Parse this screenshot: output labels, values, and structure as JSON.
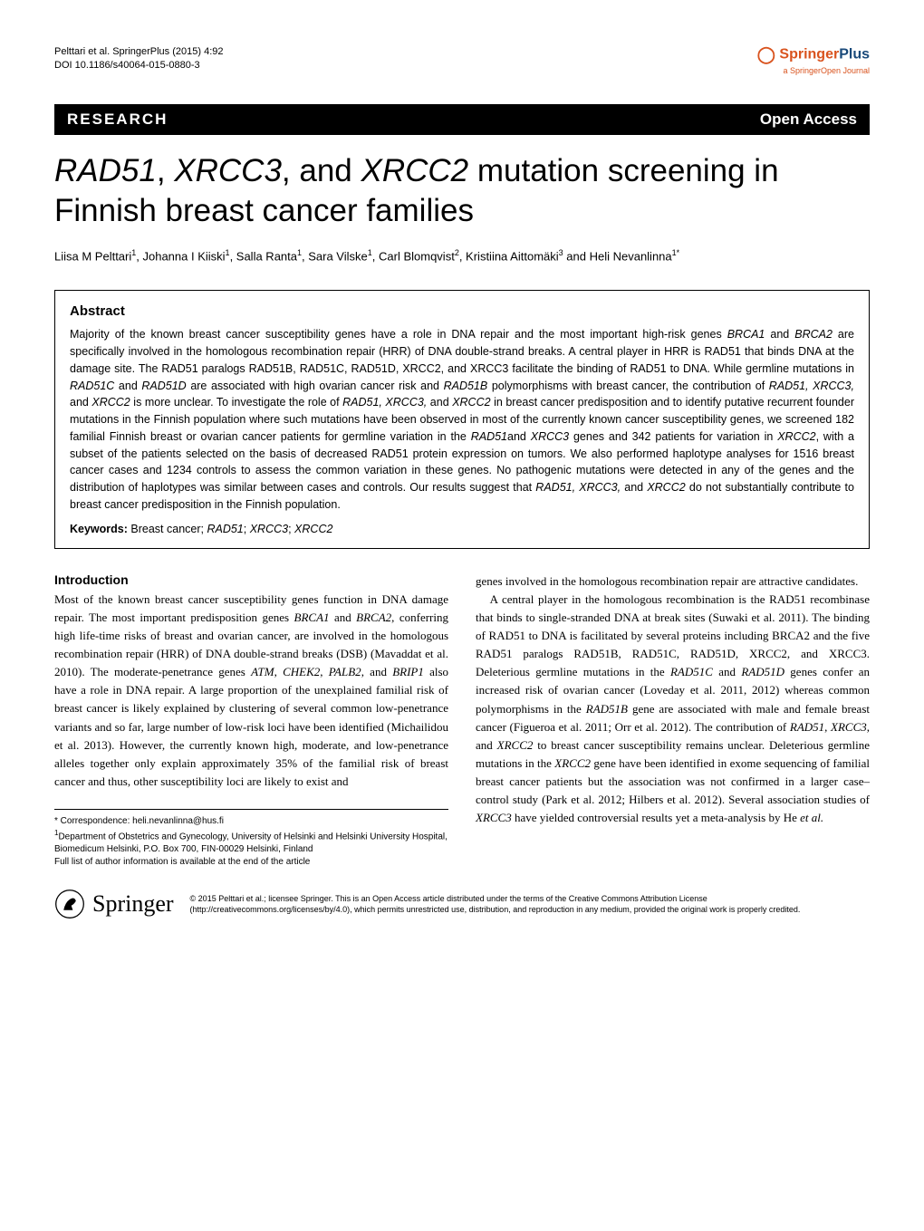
{
  "header": {
    "citation": "Pelttari et al. SpringerPlus (2015) 4:92",
    "doi": "DOI 10.1186/s40064-015-0880-3",
    "brand_springer": "Springer",
    "brand_plus": "Plus",
    "brand_sub": "a SpringerOpen Journal"
  },
  "bar": {
    "left": "RESEARCH",
    "right": "Open Access"
  },
  "title_html": "<span class=\"italic\">RAD51</span>, <span class=\"italic\">XRCC3</span>, and <span class=\"italic\">XRCC2</span> mutation screening in Finnish breast cancer families",
  "authors_html": "Liisa M Pelttari<sup>1</sup>, Johanna I Kiiski<sup>1</sup>, Salla Ranta<sup>1</sup>, Sara Vilske<sup>1</sup>, Carl Blomqvist<sup>2</sup>, Kristiina Aittomäki<sup>3</sup> and Heli Nevanlinna<sup>1*</sup>",
  "abstract": {
    "heading": "Abstract",
    "text_html": "Majority of the known breast cancer susceptibility genes have a role in DNA repair and the most important high-risk genes <span class=\"italic\">BRCA1</span> and <span class=\"italic\">BRCA2</span> are specifically involved in the homologous recombination repair (HRR) of DNA double-strand breaks. A central player in HRR is RAD51 that binds DNA at the damage site. The RAD51 paralogs RAD51B, RAD51C, RAD51D, XRCC2, and XRCC3 facilitate the binding of RAD51 to DNA. While germline mutations in <span class=\"italic\">RAD51C</span> and <span class=\"italic\">RAD51D</span> are associated with high ovarian cancer risk and <span class=\"italic\">RAD51B</span> polymorphisms with breast cancer, the contribution of <span class=\"italic\">RAD51, XRCC3,</span> and <span class=\"italic\">XRCC2</span> is more unclear. To investigate the role of <span class=\"italic\">RAD51, XRCC3,</span> and <span class=\"italic\">XRCC2</span> in breast cancer predisposition and to identify putative recurrent founder mutations in the Finnish population where such mutations have been observed in most of the currently known cancer susceptibility genes, we screened 182 familial Finnish breast or ovarian cancer patients for germline variation in the <span class=\"italic\">RAD51</span>and <span class=\"italic\">XRCC3</span> genes and 342 patients for variation in <span class=\"italic\">XRCC2</span>, with a subset of the patients selected on the basis of decreased RAD51 protein expression on tumors. We also performed haplotype analyses for 1516 breast cancer cases and 1234 controls to assess the common variation in these genes. No pathogenic mutations were detected in any of the genes and the distribution of haplotypes was similar between cases and controls. Our results suggest that <span class=\"italic\">RAD51, XRCC3,</span> and <span class=\"italic\">XRCC2</span> do not substantially contribute to breast cancer predisposition in the Finnish population.",
    "keywords_label": "Keywords:",
    "keywords_html": "Breast cancer; <span class=\"italic\">RAD51</span>; <span class=\"italic\">XRCC3</span>; <span class=\"italic\">XRCC2</span>"
  },
  "intro": {
    "heading": "Introduction",
    "col1_html": "Most of the known breast cancer susceptibility genes function in DNA damage repair. The most important predisposition genes <span class=\"italic\">BRCA1</span> and <span class=\"italic\">BRCA2</span>, conferring high life-time risks of breast and ovarian cancer, are involved in the homologous recombination repair (HRR) of DNA double-strand breaks (DSB) (Mavaddat et al. 2010). The moderate-penetrance genes <span class=\"italic\">ATM</span>, <span class=\"italic\">CHEK2</span>, <span class=\"italic\">PALB2</span>, and <span class=\"italic\">BRIP1</span> also have a role in DNA repair. A large proportion of the unexplained familial risk of breast cancer is likely explained by clustering of several common low-penetrance variants and so far, large number of low-risk loci have been identified (Michailidou et al. 2013). However, the currently known high, moderate, and low-penetrance alleles together only explain approximately 35% of the familial risk of breast cancer and thus, other susceptibility loci are likely to exist and",
    "col2_p1_html": "genes involved in the homologous recombination repair are attractive candidates.",
    "col2_p2_html": "A central player in the homologous recombination is the RAD51 recombinase that binds to single-stranded DNA at break sites (Suwaki et al. 2011). The binding of RAD51 to DNA is facilitated by several proteins including BRCA2 and the five RAD51 paralogs RAD51B, RAD51C, RAD51D, XRCC2, and XRCC3. Deleterious germline mutations in the <span class=\"italic\">RAD51C</span> and <span class=\"italic\">RAD51D</span> genes confer an increased risk of ovarian cancer (Loveday et al. 2011, 2012) whereas common polymorphisms in the <span class=\"italic\">RAD51B</span> gene are associated with male and female breast cancer (Figueroa et al. 2011; Orr et al. 2012). The contribution of <span class=\"italic\">RAD51</span>, <span class=\"italic\">XRCC3</span>, and <span class=\"italic\">XRCC2</span> to breast cancer susceptibility remains unclear. Deleterious germline mutations in the <span class=\"italic\">XRCC2</span> gene have been identified in exome sequencing of familial breast cancer patients but the association was not confirmed in a larger case–control study (Park et al. 2012; Hilbers et al. 2012). Several association studies of <span class=\"italic\">XRCC3</span> have yielded controversial results yet a meta-analysis by He <span class=\"italic\">et al.</span>"
  },
  "footer_left": {
    "correspondence": "* Correspondence: heli.nevanlinna@hus.fi",
    "affil_html": "<sup>1</sup>Department of Obstetrics and Gynecology, University of Helsinki and Helsinki University Hospital, Biomedicum Helsinki, P.O. Box 700, FIN-00029 Helsinki, Finland",
    "full_list": "Full list of author information is available at the end of the article"
  },
  "bottom": {
    "springer_word": "Springer",
    "license": "© 2015 Pelttari et al.; licensee Springer. This is an Open Access article distributed under the terms of the Creative Commons Attribution License (http://creativecommons.org/licenses/by/4.0), which permits unrestricted use, distribution, and reproduction in any medium, provided the original work is properly credited."
  },
  "colors": {
    "orange": "#d9531e",
    "blue": "#1a4a7a",
    "black": "#000000",
    "white": "#ffffff"
  }
}
